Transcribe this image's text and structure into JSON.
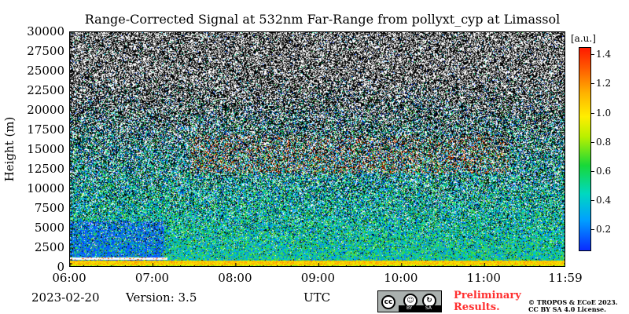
{
  "chart_data": {
    "type": "heatmap",
    "title": "Range-Corrected Signal at 532nm Far-Range from pollyxt_cyp at Limassol",
    "xlabel": "UTC",
    "ylabel": "Height (m)",
    "x_ticks": [
      "06:00",
      "07:00",
      "08:00",
      "09:00",
      "10:00",
      "11:00",
      "11:59"
    ],
    "x_range": [
      "06:00",
      "11:59"
    ],
    "y_ticks": [
      0,
      2500,
      5000,
      7500,
      10000,
      12500,
      15000,
      17500,
      20000,
      22500,
      25000,
      27500,
      30000
    ],
    "ylim": [
      0,
      30000
    ],
    "colorbar": {
      "unit": "[a.u.]",
      "ticks": [
        0.2,
        0.4,
        0.6,
        0.8,
        1.0,
        1.2,
        1.4
      ],
      "range": [
        0.05,
        1.45
      ],
      "colormap": "jet"
    },
    "features": {
      "boundary_layer_top_m": 1000,
      "cloud_layer_m": [
        1100,
        1300
      ],
      "cloud_layer_time_end": "07:10"
    },
    "grid": false,
    "legend": "none"
  },
  "footer": {
    "date": "2023-02-20",
    "version": "Version: 3.5",
    "preliminary_line1": "Preliminary",
    "preliminary_line2": "Results.",
    "copyright_line1": "© TROPOS & ECoE 2023.",
    "copyright_line2": "CC BY SA 4.0 License.",
    "license_by": "BY",
    "license_sa": "SA"
  },
  "colors": {
    "preliminary": "#ff3030",
    "badge": "#aab0ae"
  },
  "icons": [
    "cc-license-icon",
    "by-attribution-icon",
    "sa-sharealike-icon"
  ]
}
